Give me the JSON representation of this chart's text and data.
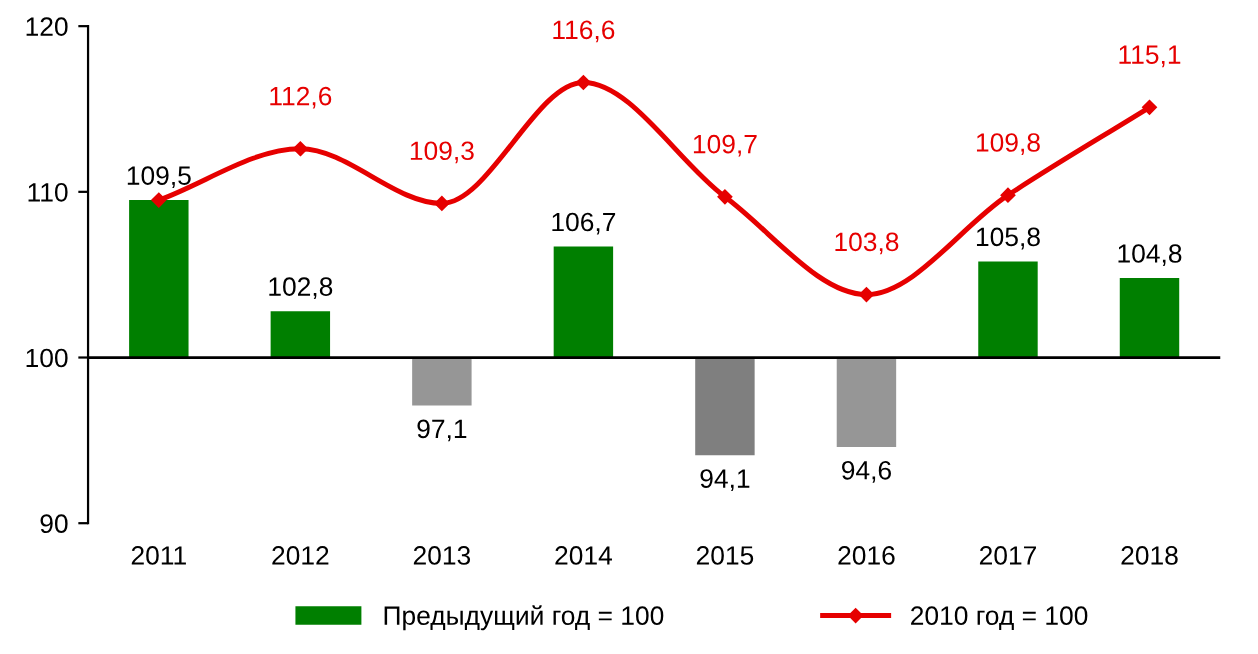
{
  "chart_data": {
    "type": "bar",
    "categories": [
      "2011",
      "2012",
      "2013",
      "2014",
      "2015",
      "2016",
      "2017",
      "2018"
    ],
    "series": [
      {
        "name": "Предыдущий год = 100",
        "color": "#007f00",
        "colors": [
          "#007f00",
          "#007f00",
          "#969696",
          "#007f00",
          "#7f7f7f",
          "#969696",
          "#007f00",
          "#007f00"
        ],
        "base": [
          100,
          100,
          100,
          100,
          100,
          100,
          100,
          100
        ],
        "values": [
          9.5,
          2.8,
          -2.9,
          6.7,
          -5.9,
          -5.4,
          5.8,
          4.8
        ],
        "value_labels": [
          "109,5",
          "102,8",
          "97,1",
          "106,7",
          "94,1",
          "94,6",
          "105,8",
          "104,8"
        ]
      },
      {
        "type": "line",
        "name": "2010 год = 100",
        "color": "#e60000",
        "marker": "diamond",
        "values": [
          109.5,
          112.6,
          109.3,
          116.6,
          109.7,
          103.8,
          109.8,
          115.1
        ],
        "value_labels": [
          null,
          "112,6",
          "109,3",
          "116,6",
          "109,7",
          "103,8",
          "109,8",
          "115,1"
        ]
      }
    ],
    "ylim": [
      90,
      120
    ],
    "yticks": [
      90,
      100,
      110,
      120
    ],
    "ref_lines": [
      {
        "axis": "y",
        "value": 100,
        "color": "#000000"
      }
    ],
    "grid": false,
    "legend": "bottom"
  }
}
